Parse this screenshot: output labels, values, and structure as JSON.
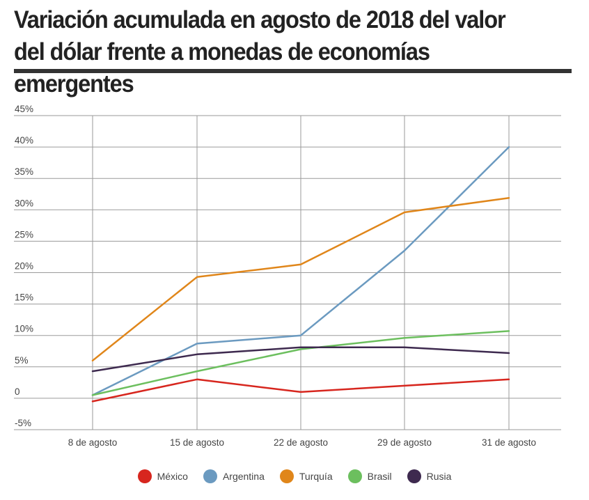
{
  "header": {
    "title": "Variación acumulada en agosto de 2018 del valor del dólar frente a monedas de economías emergentes"
  },
  "chart_data": {
    "type": "line",
    "title": "Variación acumulada en agosto de 2018 del valor del dólar frente a monedas de economías emergentes",
    "xlabel": "",
    "ylabel": "",
    "categories": [
      "8 de agosto",
      "15 de agosto",
      "22 de agosto",
      "29 de agosto",
      "31 de agosto"
    ],
    "ylim": [
      -5,
      45
    ],
    "yticks": [
      45,
      40,
      35,
      30,
      25,
      20,
      15,
      10,
      5,
      0,
      -5
    ],
    "ytick_labels": [
      "45%",
      "40%",
      "35%",
      "30%",
      "25%",
      "20%",
      "15%",
      "10%",
      "5%",
      "0",
      "-5%"
    ],
    "grid": true,
    "legend_position": "bottom",
    "series": [
      {
        "name": "México",
        "color": "#d7261e",
        "values": [
          -0.5,
          3.0,
          1.0,
          2.0,
          3.0
        ]
      },
      {
        "name": "Argentina",
        "color": "#6b9ac0",
        "values": [
          0.5,
          8.7,
          10.0,
          23.5,
          40.0
        ]
      },
      {
        "name": "Turquía",
        "color": "#e0861a",
        "values": [
          6.0,
          19.3,
          21.3,
          29.6,
          31.9
        ]
      },
      {
        "name": "Brasil",
        "color": "#6cbf5e",
        "values": [
          0.5,
          4.3,
          7.8,
          9.6,
          10.7
        ]
      },
      {
        "name": "Rusia",
        "color": "#3e2a4f",
        "values": [
          4.3,
          7.0,
          8.1,
          8.1,
          7.2
        ]
      }
    ]
  }
}
